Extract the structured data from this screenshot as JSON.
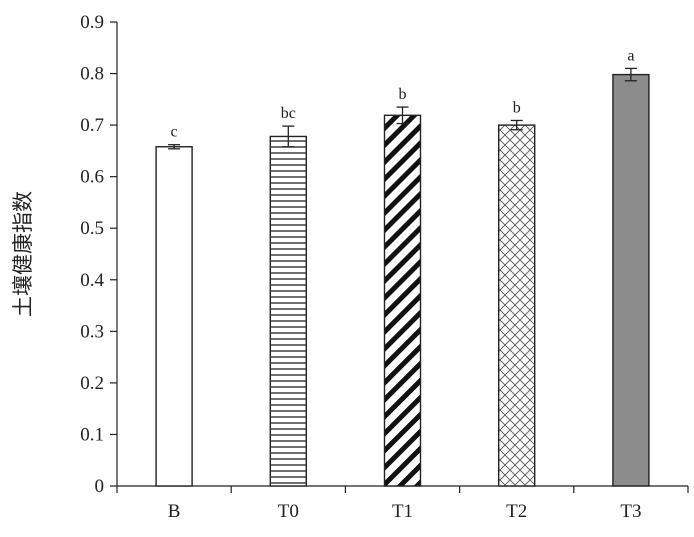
{
  "chart_data": {
    "type": "bar",
    "ylabel": "土壤健康指数",
    "xlabel": "",
    "ylim": [
      0,
      0.9
    ],
    "yticks": [
      "0",
      "0.1",
      "0.2",
      "0.3",
      "0.4",
      "0.5",
      "0.6",
      "0.7",
      "0.8",
      "0.9"
    ],
    "categories": [
      "B",
      "T0",
      "T1",
      "T2",
      "T3"
    ],
    "values": [
      0.658,
      0.678,
      0.719,
      0.7,
      0.798
    ],
    "errors": [
      0.004,
      0.02,
      0.016,
      0.009,
      0.012
    ],
    "significance": [
      "c",
      "bc",
      "b",
      "b",
      "a"
    ],
    "patterns": [
      "blank",
      "horizontal-lines",
      "diagonal-stripes",
      "crosshatch",
      "solid-gray"
    ],
    "colors": {
      "bar_stroke": "#222222",
      "solid_fill": "#8c8c8c",
      "axis": "#222222"
    },
    "grid": false,
    "legend": "none"
  }
}
